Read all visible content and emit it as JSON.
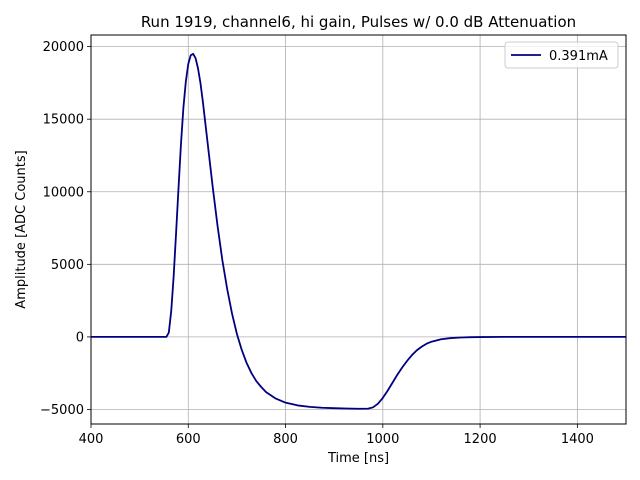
{
  "chart_data": {
    "type": "line",
    "title": "Run 1919, channel6, hi gain, Pulses w/ 0.0 dB Attenuation",
    "xlabel": "Time [ns]",
    "ylabel": "Amplitude [ADC Counts]",
    "xlim": [
      400,
      1500
    ],
    "ylim": [
      -6000,
      20800
    ],
    "xticks": [
      400,
      600,
      800,
      1000,
      1200,
      1400
    ],
    "xtick_labels": [
      "400",
      "600",
      "800",
      "1000",
      "1200",
      "1400"
    ],
    "yticks": [
      -5000,
      0,
      5000,
      10000,
      15000,
      20000
    ],
    "ytick_labels": [
      "−5000",
      "0",
      "5000",
      "10000",
      "15000",
      "20000"
    ],
    "grid": true,
    "legend_position": "top-right",
    "series": [
      {
        "name": "0.391mA",
        "color": "#000080",
        "x": [
          400,
          500,
          555,
          560,
          565,
          570,
          575,
          580,
          585,
          590,
          595,
          600,
          605,
          610,
          615,
          620,
          625,
          630,
          640,
          650,
          660,
          670,
          680,
          690,
          700,
          710,
          720,
          730,
          740,
          750,
          760,
          780,
          800,
          825,
          850,
          875,
          900,
          925,
          950,
          970,
          980,
          990,
          1000,
          1010,
          1020,
          1030,
          1040,
          1050,
          1060,
          1070,
          1080,
          1090,
          1100,
          1120,
          1140,
          1160,
          1180,
          1200,
          1250,
          1300,
          1400,
          1500
        ],
        "y": [
          0,
          0,
          0,
          300,
          1800,
          4200,
          7200,
          10300,
          13300,
          15800,
          17600,
          18800,
          19400,
          19500,
          19200,
          18500,
          17500,
          16200,
          13300,
          10400,
          7700,
          5300,
          3300,
          1600,
          200,
          -900,
          -1800,
          -2500,
          -3050,
          -3450,
          -3800,
          -4250,
          -4530,
          -4720,
          -4820,
          -4880,
          -4910,
          -4930,
          -4950,
          -4940,
          -4850,
          -4600,
          -4200,
          -3700,
          -3150,
          -2600,
          -2100,
          -1650,
          -1250,
          -920,
          -670,
          -470,
          -330,
          -160,
          -80,
          -40,
          -20,
          -10,
          0,
          0,
          0,
          0
        ]
      }
    ]
  }
}
